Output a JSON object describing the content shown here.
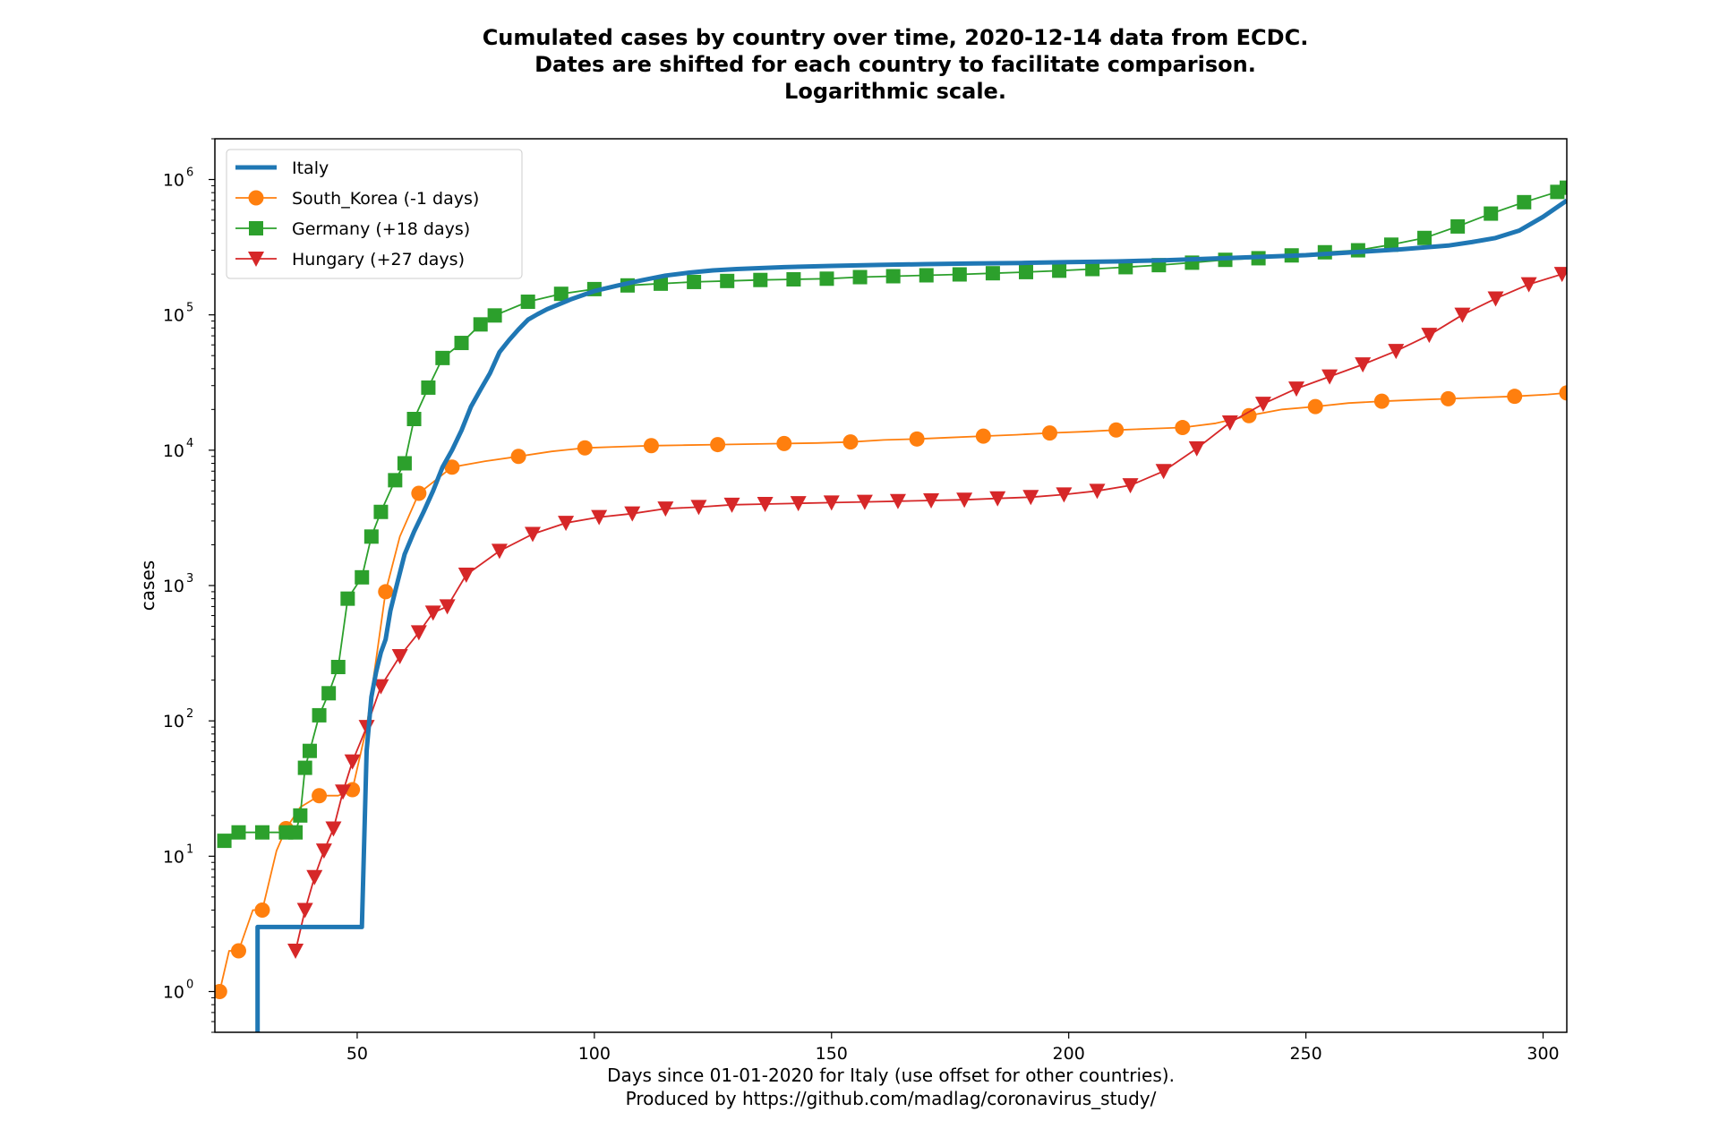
{
  "chart_data": {
    "type": "line",
    "title": [
      "Cumulated cases by country over time, 2020-12-14 data from ECDC.",
      "Dates are shifted for each country to facilitate comparison.",
      "Logarithmic scale."
    ],
    "xlabel": [
      "Days since 01-01-2020 for Italy (use offset for other countries).",
      "Produced by https://github.com/madlag/coronavirus_study/"
    ],
    "ylabel": "cases",
    "xlim": [
      20,
      305
    ],
    "ylim": [
      0.5,
      2000000
    ],
    "yscale": "log",
    "xticks": [
      50,
      100,
      150,
      200,
      250,
      300
    ],
    "yticks": [
      1,
      10,
      100,
      1000,
      10000,
      100000,
      1000000
    ],
    "ytick_labels": [
      {
        "base": "10",
        "exp": "0"
      },
      {
        "base": "10",
        "exp": "1"
      },
      {
        "base": "10",
        "exp": "2"
      },
      {
        "base": "10",
        "exp": "3"
      },
      {
        "base": "10",
        "exp": "4"
      },
      {
        "base": "10",
        "exp": "5"
      },
      {
        "base": "10",
        "exp": "6"
      }
    ],
    "grid": false,
    "legend_position": "top-left",
    "series": [
      {
        "name": "Italy",
        "color": "#1f77b4",
        "marker": "none",
        "x": [
          29,
          29,
          51,
          51,
          52,
          53,
          54,
          55,
          56,
          57,
          58,
          60,
          62,
          64,
          66,
          68,
          70,
          72,
          74,
          76,
          78,
          80,
          82,
          84,
          86,
          88,
          90,
          95,
          100,
          105,
          110,
          115,
          120,
          125,
          130,
          140,
          150,
          160,
          170,
          180,
          190,
          200,
          210,
          220,
          230,
          240,
          250,
          260,
          270,
          280,
          285,
          290,
          295,
          300,
          305
        ],
        "y": [
          0.4,
          3,
          3,
          3,
          60,
          150,
          230,
          320,
          400,
          650,
          900,
          1700,
          2500,
          3500,
          5000,
          7500,
          10000,
          14000,
          21000,
          28000,
          37000,
          53000,
          65000,
          78000,
          92000,
          101000,
          110000,
          130000,
          150000,
          165000,
          180000,
          195000,
          205000,
          213000,
          218000,
          225000,
          230000,
          234000,
          237000,
          240000,
          242000,
          245000,
          248000,
          253000,
          260000,
          268000,
          276000,
          290000,
          305000,
          325000,
          345000,
          370000,
          420000,
          530000,
          700000
        ]
      },
      {
        "name": "South_Korea (-1 days)",
        "color": "#ff7f0e",
        "marker": "circle",
        "x": [
          21,
          23,
          25,
          28,
          30,
          33,
          35,
          38,
          42,
          46,
          49,
          52,
          56,
          59,
          63,
          66,
          70,
          77,
          84,
          91,
          98,
          105,
          112,
          119,
          126,
          133,
          140,
          147,
          154,
          161,
          168,
          175,
          182,
          189,
          196,
          203,
          210,
          217,
          224,
          231,
          238,
          245,
          252,
          259,
          266,
          273,
          280,
          287,
          294,
          301,
          305
        ],
        "y": [
          1,
          2,
          2,
          4,
          4,
          11,
          16,
          23,
          28,
          28,
          31,
          90,
          900,
          2300,
          4800,
          5800,
          7500,
          8300,
          9000,
          9800,
          10400,
          10600,
          10800,
          10900,
          11000,
          11100,
          11200,
          11300,
          11500,
          11900,
          12100,
          12400,
          12700,
          13000,
          13400,
          13700,
          14100,
          14400,
          14700,
          15800,
          18000,
          20000,
          21000,
          22300,
          23000,
          23500,
          24000,
          24500,
          25000,
          25800,
          26500
        ]
      },
      {
        "name": "Germany (+18 days)",
        "color": "#2ca02c",
        "marker": "square",
        "x": [
          22,
          25,
          30,
          35,
          37,
          38,
          39,
          40,
          42,
          44,
          46,
          48,
          51,
          53,
          55,
          58,
          60,
          62,
          65,
          68,
          72,
          76,
          79,
          86,
          93,
          100,
          107,
          114,
          121,
          128,
          135,
          142,
          149,
          156,
          163,
          170,
          177,
          184,
          191,
          198,
          205,
          212,
          219,
          226,
          233,
          240,
          247,
          254,
          261,
          268,
          275,
          282,
          289,
          296,
          303,
          305
        ],
        "y": [
          13,
          15,
          15,
          15,
          15,
          20,
          45,
          60,
          110,
          160,
          250,
          800,
          1150,
          2300,
          3500,
          6000,
          8000,
          17000,
          29000,
          48000,
          62000,
          85000,
          99000,
          125000,
          143000,
          155000,
          165000,
          170000,
          175000,
          178000,
          181000,
          183000,
          185000,
          190000,
          193000,
          196000,
          199000,
          203000,
          207000,
          212000,
          218000,
          225000,
          233000,
          243000,
          255000,
          262000,
          275000,
          290000,
          300000,
          330000,
          370000,
          450000,
          560000,
          680000,
          810000,
          870000
        ]
      },
      {
        "name": "Hungary (+27 days)",
        "color": "#d62728",
        "marker": "triangle-down",
        "x": [
          37,
          39,
          41,
          43,
          45,
          47,
          49,
          52,
          55,
          59,
          63,
          66,
          69,
          73,
          80,
          87,
          94,
          101,
          108,
          115,
          122,
          129,
          136,
          143,
          150,
          157,
          164,
          171,
          178,
          185,
          192,
          199,
          206,
          213,
          220,
          227,
          234,
          241,
          248,
          255,
          262,
          269,
          276,
          283,
          290,
          297,
          304
        ],
        "y": [
          2,
          4,
          7,
          11,
          16,
          30,
          50,
          90,
          180,
          300,
          450,
          630,
          700,
          1200,
          1800,
          2400,
          2900,
          3200,
          3400,
          3700,
          3800,
          3950,
          4000,
          4050,
          4100,
          4150,
          4200,
          4250,
          4300,
          4400,
          4500,
          4700,
          5000,
          5500,
          7000,
          10300,
          16000,
          22000,
          28500,
          35000,
          43000,
          54000,
          71000,
          100000,
          132000,
          168000,
          200000
        ]
      }
    ]
  }
}
